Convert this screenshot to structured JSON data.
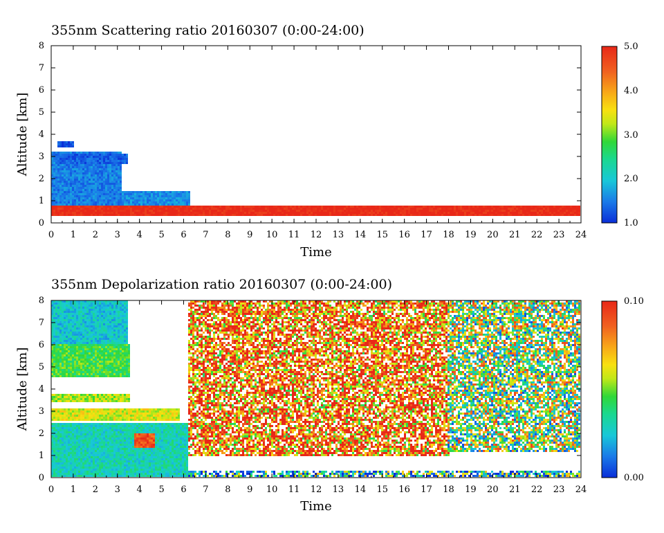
{
  "charts": [
    {
      "title": "355nm Scattering ratio  20160307 (0:00-24:00)",
      "xlabel": "Time",
      "ylabel": "Altitude [km]",
      "colorbar_labels": [
        "1.0",
        "2.0",
        "3.0",
        "4.0",
        "5.0"
      ]
    },
    {
      "title": "355nm Depolarization ratio  20160307 (0:00-24:00)",
      "xlabel": "Time",
      "ylabel": "Altitude [km]",
      "colorbar_labels": [
        "0.00",
        "0.10"
      ]
    }
  ],
  "chart_data": [
    {
      "type": "heatmap",
      "title": "355nm Scattering ratio  20160307 (0:00-24:00)",
      "xlabel": "Time",
      "ylabel": "Altitude [km]",
      "xlim": [
        0,
        24
      ],
      "ylim": [
        0,
        8
      ],
      "xticks": [
        0,
        1,
        2,
        3,
        4,
        5,
        6,
        7,
        8,
        9,
        10,
        11,
        12,
        13,
        14,
        15,
        16,
        17,
        18,
        19,
        20,
        21,
        22,
        23,
        24
      ],
      "yticks": [
        0,
        1,
        2,
        3,
        4,
        5,
        6,
        7,
        8
      ],
      "colorbar": {
        "min": 1.0,
        "max": 5.0,
        "labels": [
          "1.0",
          "2.0",
          "3.0",
          "4.0",
          "5.0"
        ]
      },
      "features": [
        {
          "name": "layer",
          "x": [
            0.0,
            3.2
          ],
          "y": [
            0.5,
            3.2
          ],
          "value": 1.5
        },
        {
          "name": "layer",
          "x": [
            3.2,
            6.3
          ],
          "y": [
            0.4,
            1.4
          ],
          "value": 1.6
        },
        {
          "name": "near-surface",
          "x": [
            0.0,
            6.3
          ],
          "y": [
            0.45,
            0.8
          ],
          "value": 2.5
        },
        {
          "name": "layer-top",
          "x": [
            0.3,
            3.5
          ],
          "y": [
            2.7,
            3.1
          ],
          "value": 1.3
        },
        {
          "name": "patches",
          "x": [
            0.3,
            1.0
          ],
          "y": [
            3.4,
            3.7
          ],
          "value": 1.2
        },
        {
          "name": "boundary",
          "x": [
            0.0,
            24.0
          ],
          "y": [
            0.35,
            0.8
          ],
          "value": 5.0
        }
      ]
    },
    {
      "type": "heatmap",
      "title": "355nm Depolarization ratio  20160307 (0:00-24:00)",
      "xlabel": "Time",
      "ylabel": "Altitude [km]",
      "xlim": [
        0,
        24
      ],
      "ylim": [
        0,
        8
      ],
      "xticks": [
        0,
        1,
        2,
        3,
        4,
        5,
        6,
        7,
        8,
        9,
        10,
        11,
        12,
        13,
        14,
        15,
        16,
        17,
        18,
        19,
        20,
        21,
        22,
        23,
        24
      ],
      "yticks": [
        0,
        1,
        2,
        3,
        4,
        5,
        6,
        7,
        8
      ],
      "colorbar": {
        "min": 0.0,
        "max": 0.1,
        "labels": [
          "0.00",
          "0.10"
        ]
      },
      "features": [
        {
          "name": "upper-air",
          "x": [
            0.0,
            3.5
          ],
          "y": [
            6.0,
            8.0
          ],
          "value": 0.025
        },
        {
          "name": "band",
          "x": [
            0.0,
            3.6
          ],
          "y": [
            4.5,
            6.0
          ],
          "value": 0.045
        },
        {
          "name": "band",
          "x": [
            0.0,
            3.6
          ],
          "y": [
            3.4,
            3.8
          ],
          "value": 0.055
        },
        {
          "name": "band",
          "x": [
            0.0,
            5.8
          ],
          "y": [
            2.6,
            3.1
          ],
          "value": 0.06
        },
        {
          "name": "lower-layer",
          "x": [
            0.0,
            6.2
          ],
          "y": [
            0.2,
            2.5
          ],
          "value": 0.03
        },
        {
          "name": "noise",
          "x": [
            6.2,
            18.0
          ],
          "y": [
            1.0,
            8.0
          ],
          "value": 0.085
        },
        {
          "name": "noise",
          "x": [
            18.0,
            24.0
          ],
          "y": [
            1.2,
            8.0
          ],
          "value": 0.05
        },
        {
          "name": "gap",
          "x": [
            6.3,
            24.0
          ],
          "y": [
            0.35,
            1.0
          ],
          "value": null
        },
        {
          "name": "layer-edge",
          "x": [
            3.8,
            4.7
          ],
          "y": [
            1.3,
            2.0
          ],
          "value": 0.09
        },
        {
          "name": "surface",
          "x": [
            0.0,
            24.0
          ],
          "y": [
            0.0,
            0.3
          ],
          "value": 0.03
        }
      ]
    }
  ]
}
